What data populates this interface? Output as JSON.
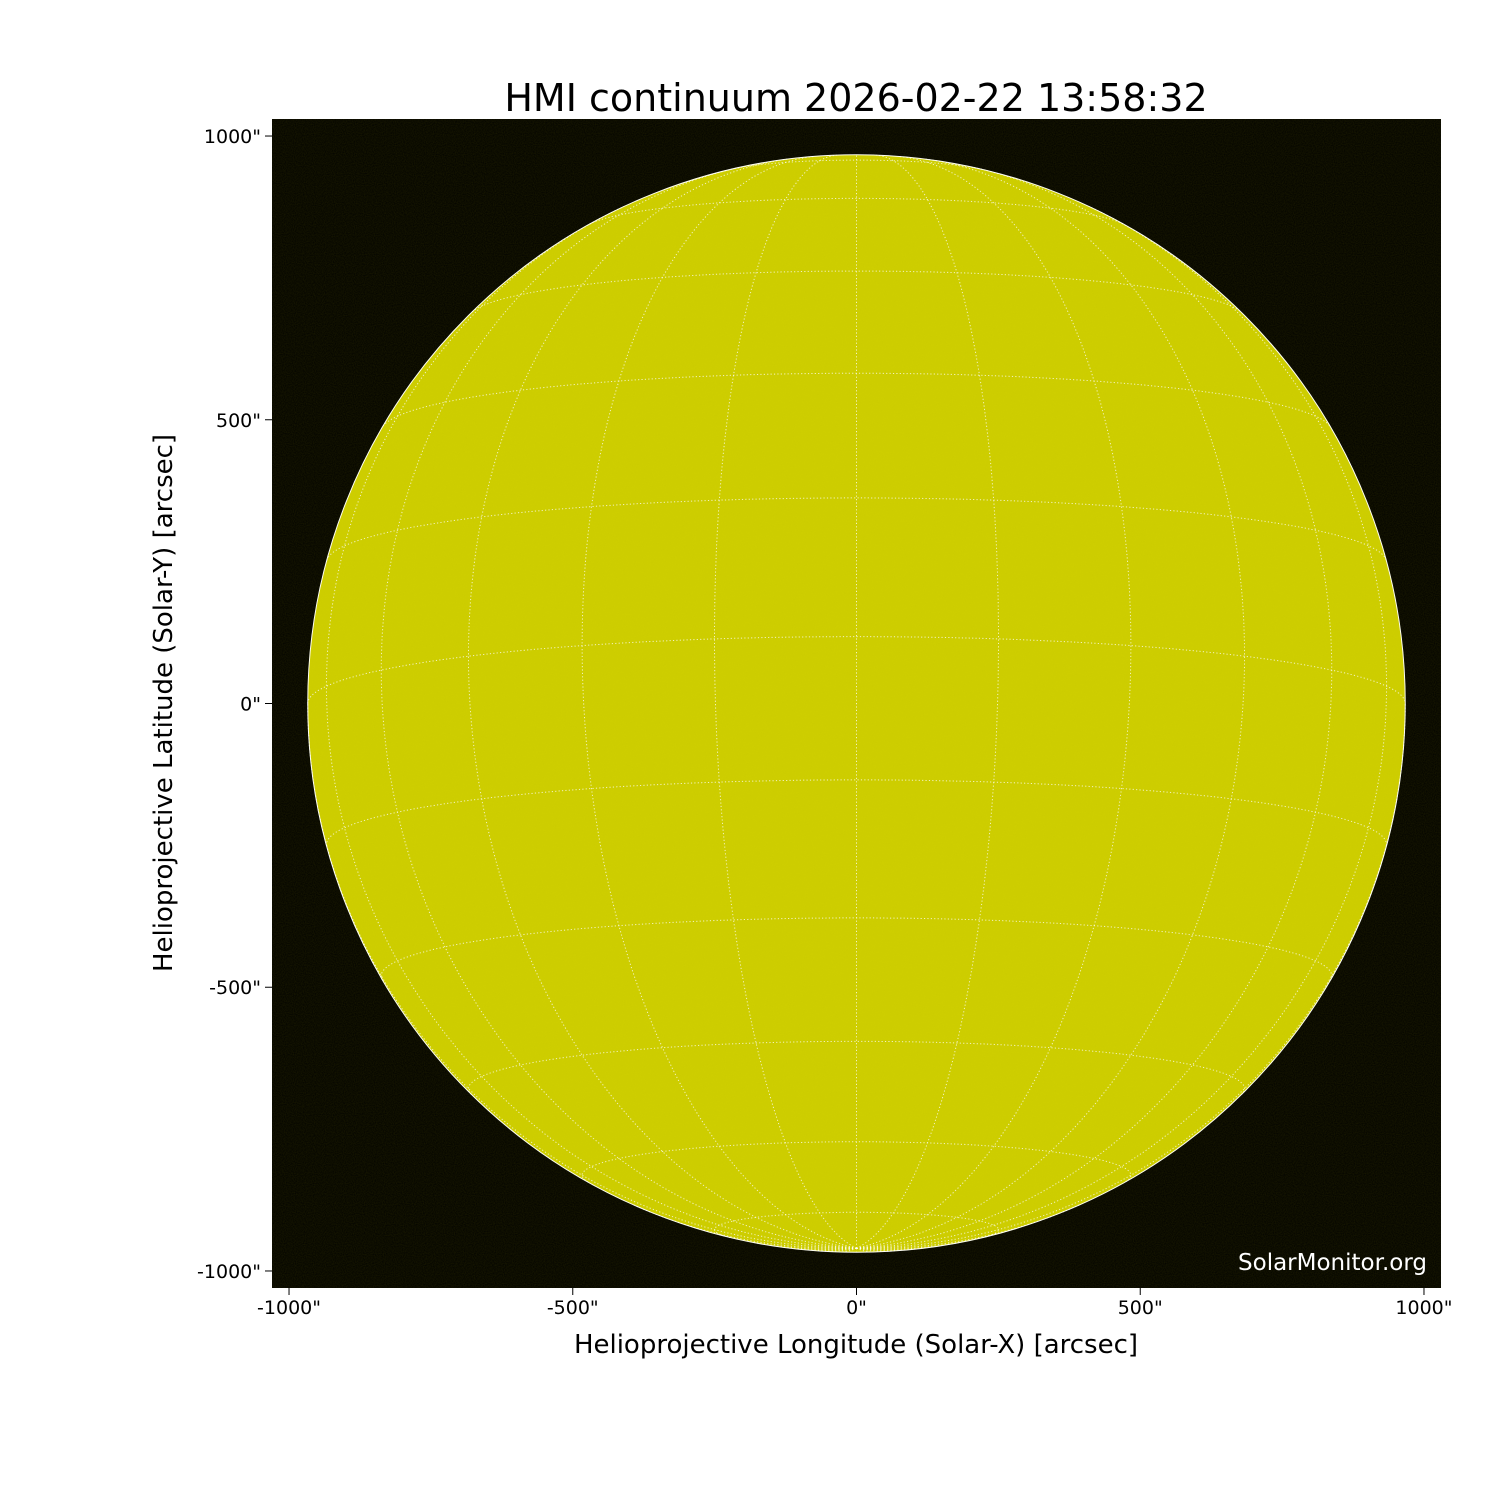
{
  "chart_data": {
    "type": "heatmap",
    "title": "HMI continuum 2026-02-22 13:58:32",
    "xlabel": "Helioprojective Longitude (Solar-X) [arcsec]",
    "ylabel": "Helioprojective Latitude (Solar-Y) [arcsec]",
    "xlim": [
      -1030,
      1030
    ],
    "ylim": [
      -1030,
      1030
    ],
    "xticks": [
      -1000,
      -500,
      0,
      500,
      1000
    ],
    "xtick_labels": [
      "-1000\"",
      "-500\"",
      "0\"",
      "500\"",
      "1000\""
    ],
    "yticks": [
      1000,
      500,
      0,
      -500,
      -1000
    ],
    "ytick_labels": [
      "1000\"",
      "500\"",
      "0\"",
      "-500\"",
      "-1000\""
    ],
    "solar_radius_arcsec": 967,
    "grid": {
      "on": true,
      "style": "dotted",
      "color": "#ffffff",
      "lat_lon_spacing_deg": 15,
      "b0_deg": -7
    },
    "colors": {
      "disk": "#cccc00",
      "background": "#000000"
    },
    "watermark": "SolarMonitor.org"
  }
}
